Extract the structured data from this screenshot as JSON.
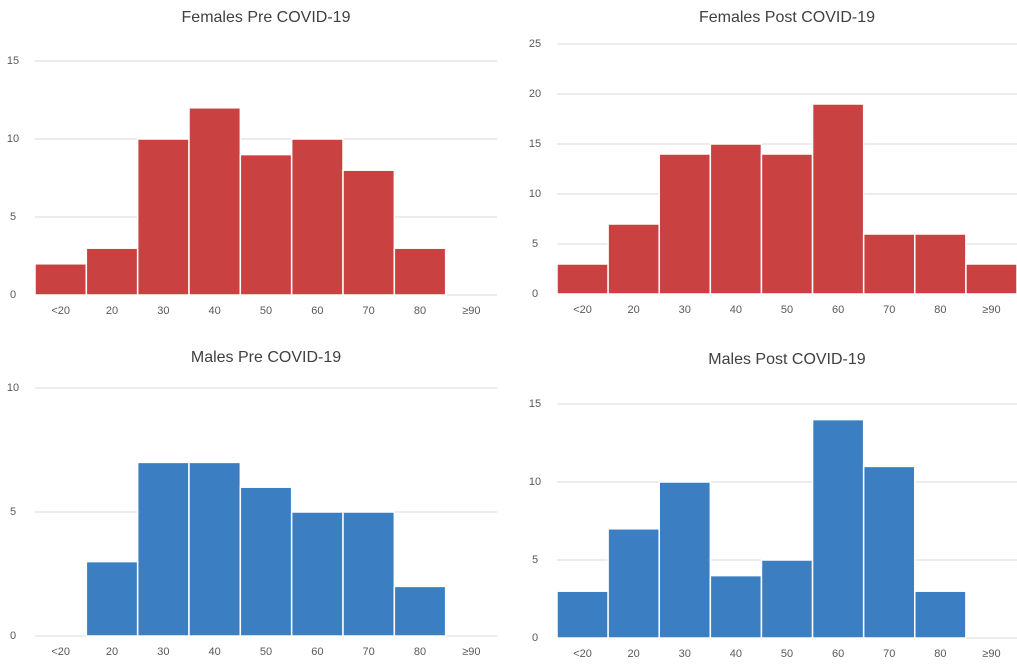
{
  "chart_data": [
    {
      "type": "bar",
      "title": "Females Pre COVID-19",
      "categories": [
        "<20",
        "20",
        "30",
        "40",
        "50",
        "60",
        "70",
        "80",
        "≥90"
      ],
      "values": [
        2,
        3,
        10,
        12,
        9,
        10,
        8,
        3,
        0
      ],
      "color": "#c94141",
      "ylim": [
        0,
        15
      ],
      "yticks": [
        0,
        5,
        10,
        15
      ],
      "grid": true
    },
    {
      "type": "bar",
      "title": "Females Post COVID-19",
      "categories": [
        "<20",
        "20",
        "30",
        "40",
        "50",
        "60",
        "70",
        "80",
        "≥90"
      ],
      "values": [
        3,
        7,
        14,
        15,
        14,
        19,
        6,
        6,
        3
      ],
      "color": "#c94141",
      "ylim": [
        0,
        25
      ],
      "yticks": [
        0,
        5,
        10,
        15,
        20,
        25
      ],
      "grid": true
    },
    {
      "type": "bar",
      "title": "Males Pre COVID-19",
      "categories": [
        "<20",
        "20",
        "30",
        "40",
        "50",
        "60",
        "70",
        "80",
        "≥90"
      ],
      "values": [
        0,
        3,
        7,
        7,
        6,
        5,
        5,
        2,
        0
      ],
      "color": "#3b7fc2",
      "ylim": [
        0,
        10
      ],
      "yticks": [
        0,
        5,
        10
      ],
      "grid": true
    },
    {
      "type": "bar",
      "title": "Males Post COVID-19",
      "categories": [
        "<20",
        "20",
        "30",
        "40",
        "50",
        "60",
        "70",
        "80",
        "≥90"
      ],
      "values": [
        3,
        7,
        10,
        4,
        5,
        14,
        11,
        3,
        0
      ],
      "color": "#3b7fc2",
      "ylim": [
        0,
        15
      ],
      "yticks": [
        0,
        5,
        10,
        15
      ],
      "grid": true
    }
  ]
}
